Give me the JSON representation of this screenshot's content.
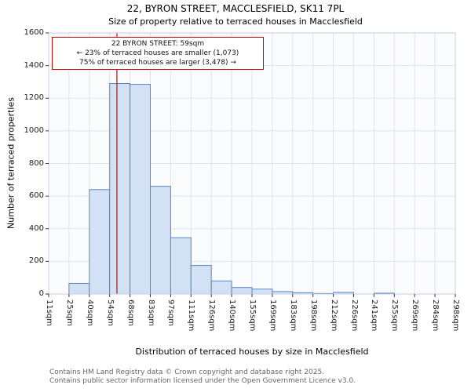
{
  "chart_data": {
    "type": "bar",
    "title": "22, BYRON STREET, MACCLESFIELD, SK11 7PL",
    "subtitle": "Size of property relative to terraced houses in Macclesfield",
    "xlabel": "Distribution of terraced houses by size in Macclesfield",
    "ylabel": "Number of terraced properties",
    "ylim": [
      0,
      1600
    ],
    "y_ticks": [
      0,
      200,
      400,
      600,
      800,
      1000,
      1200,
      1400,
      1600
    ],
    "x_ticks": [
      "11sqm",
      "25sqm",
      "40sqm",
      "54sqm",
      "68sqm",
      "83sqm",
      "97sqm",
      "111sqm",
      "126sqm",
      "140sqm",
      "155sqm",
      "169sqm",
      "183sqm",
      "198sqm",
      "212sqm",
      "226sqm",
      "241sqm",
      "255sqm",
      "269sqm",
      "284sqm",
      "298sqm"
    ],
    "bin_edges": [
      11,
      25,
      40,
      54,
      68,
      83,
      97,
      111,
      126,
      140,
      155,
      169,
      183,
      198,
      212,
      226,
      241,
      255,
      269,
      284,
      298
    ],
    "values": [
      0,
      65,
      640,
      1290,
      1285,
      660,
      345,
      175,
      80,
      40,
      30,
      15,
      8,
      3,
      10,
      0,
      5,
      0,
      0,
      0
    ],
    "marker_x": 59,
    "annotation": {
      "line1": "22 BYRON STREET: 59sqm",
      "line2": "← 23% of terraced houses are smaller (1,073)",
      "line3": "75% of terraced houses are larger (3,478) →"
    },
    "grid": true,
    "legend": "none",
    "colors": {
      "bar_fill": "#d3e1f4",
      "bar_border": "#5c85c7",
      "marker": "#a31515",
      "annotation_border": "#cc0000",
      "grid": "#dde3f0",
      "spine": "#c6cedf",
      "plot_bg": "#fbfcfe",
      "tick": "#333333"
    }
  },
  "footer": {
    "line1": "Contains HM Land Registry data © Crown copyright and database right 2025.",
    "line2": "Contains public sector information licensed under the Open Government Licence v3.0."
  }
}
